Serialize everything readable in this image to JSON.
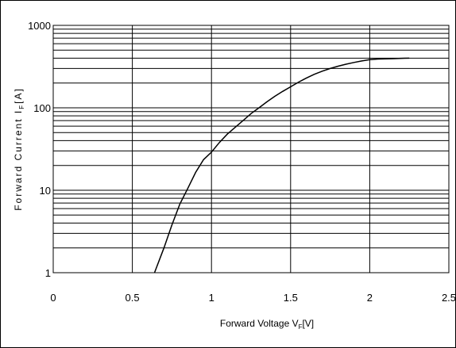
{
  "chart_data": {
    "type": "line",
    "xlabel": "Forward Voltage V",
    "xlabel_sub": "F",
    "xlabel_unit": "[V]",
    "ylabel": "Forward Current I",
    "ylabel_sub": "F",
    "ylabel_unit": "[A]",
    "xlim": [
      0,
      2.5
    ],
    "ylim": [
      1,
      1000
    ],
    "y_scale": "log",
    "x_ticks": [
      "0",
      "0.5",
      "1",
      "1.5",
      "2",
      "2.5"
    ],
    "y_ticks": [
      "1",
      "10",
      "100",
      "1000"
    ],
    "grid": true,
    "series": [
      {
        "color": "#000000",
        "x": [
          0.64,
          0.7,
          0.75,
          0.8,
          0.85,
          0.9,
          0.95,
          1.0,
          1.05,
          1.1,
          1.15,
          1.2,
          1.25,
          1.3,
          1.35,
          1.4,
          1.45,
          1.5,
          1.55,
          1.6,
          1.65,
          1.7,
          1.75,
          1.8,
          1.85,
          1.9,
          1.95,
          2.0,
          2.05,
          2.1,
          2.15,
          2.2,
          2.25
        ],
        "y": [
          1.0,
          2.0,
          3.8,
          6.8,
          10.5,
          16.5,
          23.5,
          29,
          38,
          48,
          58,
          70,
          85,
          100,
          118,
          138,
          158,
          180,
          205,
          230,
          255,
          278,
          300,
          320,
          338,
          355,
          370,
          383,
          390,
          392,
          395,
          398,
          400
        ]
      }
    ]
  }
}
